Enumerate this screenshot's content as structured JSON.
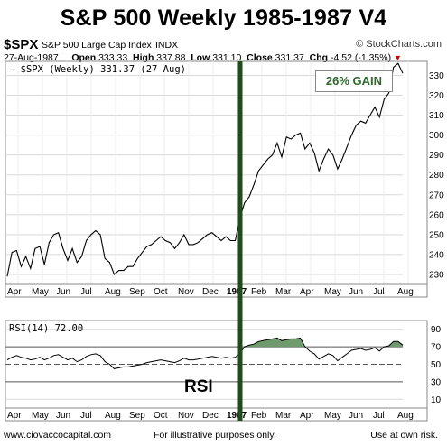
{
  "header": {
    "title": "S&P 500 Weekly 1985-1987 V4",
    "symbol": "$SPX",
    "index_name": "S&P 500 Large Cap Index",
    "exchange": "INDX",
    "brand": "© StockCharts.com",
    "date": "27-Aug-1987",
    "open_label": "Open",
    "open": "333.33",
    "high_label": "High",
    "high": "337.88",
    "low_label": "Low",
    "low": "331.10",
    "close_label": "Close",
    "close": "331.37",
    "chg_label": "Chg",
    "chg": "-4.52 (-1.35%)",
    "chg_arrow": "▼"
  },
  "legend": {
    "price": "— $SPX (Weekly) 331.37 (27 Aug)",
    "rsi": "RSI(14) 72.00"
  },
  "annotations": {
    "gain": "26% GAIN",
    "rsi": "RSI"
  },
  "footer": {
    "left": "www.ciovaccocapital.com",
    "mid": "For illustrative purposes only.",
    "right": "Use at own risk."
  },
  "colors": {
    "price_line": "#000000",
    "marker_line": "#1f4d1a",
    "rsi_fill": "#6e9a6e",
    "gain_text": "#2c6a2c",
    "grid": "#d9d9d9"
  },
  "chart_data": [
    {
      "type": "line",
      "series": [
        {
          "name": "$SPX (Weekly)",
          "values": [
            229,
            241,
            242,
            234,
            239,
            233,
            243,
            244,
            235,
            246,
            250,
            251,
            243,
            237,
            243,
            236,
            239,
            247,
            250,
            252,
            250,
            238,
            236,
            230,
            232,
            232,
            234,
            234,
            238,
            241,
            244,
            245,
            247,
            249,
            247,
            246,
            243,
            246,
            250,
            245,
            245,
            246,
            248,
            250,
            251,
            249,
            247,
            249,
            247,
            247,
            258,
            266,
            269,
            275,
            282,
            285,
            288,
            290,
            296,
            289,
            299,
            298,
            300,
            301,
            293,
            296,
            291,
            282,
            288,
            293,
            290,
            283,
            288,
            294,
            300,
            305,
            307,
            306,
            310,
            314,
            309,
            318,
            321,
            334,
            336,
            331
          ]
        }
      ],
      "ylim": [
        225,
        337
      ],
      "y_ticks": [
        230,
        240,
        250,
        260,
        270,
        280,
        290,
        300,
        310,
        320,
        330
      ],
      "x_ticks": [
        "Apr",
        "May",
        "Jun",
        "Jul",
        "Aug",
        "Sep",
        "Oct",
        "Nov",
        "Dec",
        "1987",
        "Feb",
        "Mar",
        "Apr",
        "May",
        "Jun",
        "Jul",
        "Aug"
      ],
      "vertical_marker": "1987",
      "grid": true
    },
    {
      "type": "area",
      "series": [
        {
          "name": "RSI(14)",
          "values": [
            55,
            58,
            60,
            58,
            57,
            55,
            56,
            58,
            55,
            57,
            60,
            61,
            58,
            55,
            57,
            53,
            55,
            59,
            61,
            62,
            60,
            53,
            50,
            45,
            46,
            47,
            47,
            48,
            49,
            50,
            52,
            53,
            54,
            55,
            54,
            53,
            52,
            54,
            57,
            55,
            55,
            56,
            57,
            58,
            59,
            58,
            57,
            58,
            57,
            58,
            62,
            70,
            72,
            73,
            76,
            77,
            78,
            79,
            80,
            77,
            78,
            79,
            79,
            80,
            70,
            65,
            62,
            56,
            59,
            62,
            60,
            54,
            58,
            62,
            66,
            67,
            68,
            66,
            67,
            69,
            65,
            70,
            71,
            76,
            76,
            72
          ]
        }
      ],
      "ylim": [
        0,
        100
      ],
      "y_ticks": [
        10,
        30,
        50,
        70,
        90
      ],
      "ref_lines": [
        30,
        50,
        70
      ],
      "x_ticks": [
        "Apr",
        "May",
        "Jun",
        "Jul",
        "Aug",
        "Sep",
        "Oct",
        "Nov",
        "Dec",
        "1987",
        "Feb",
        "Mar",
        "Apr",
        "May",
        "Jun",
        "Jul",
        "Aug"
      ]
    }
  ]
}
